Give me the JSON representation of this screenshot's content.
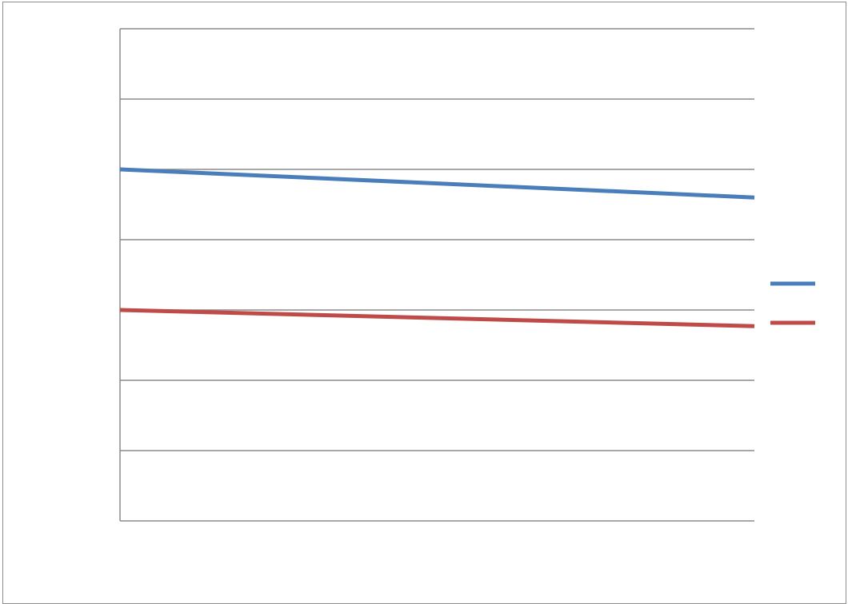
{
  "chart_data": {
    "type": "line",
    "title": "",
    "xlabel": "",
    "ylabel": "",
    "categories": [
      "",
      ""
    ],
    "ylim": [
      0,
      7
    ],
    "grid": true,
    "legend": "right",
    "series": [
      {
        "color": "#4a7ebb",
        "values": [
          5.0,
          4.6
        ]
      },
      {
        "color": "#be4b48",
        "values": [
          3.0,
          2.77
        ]
      }
    ]
  }
}
